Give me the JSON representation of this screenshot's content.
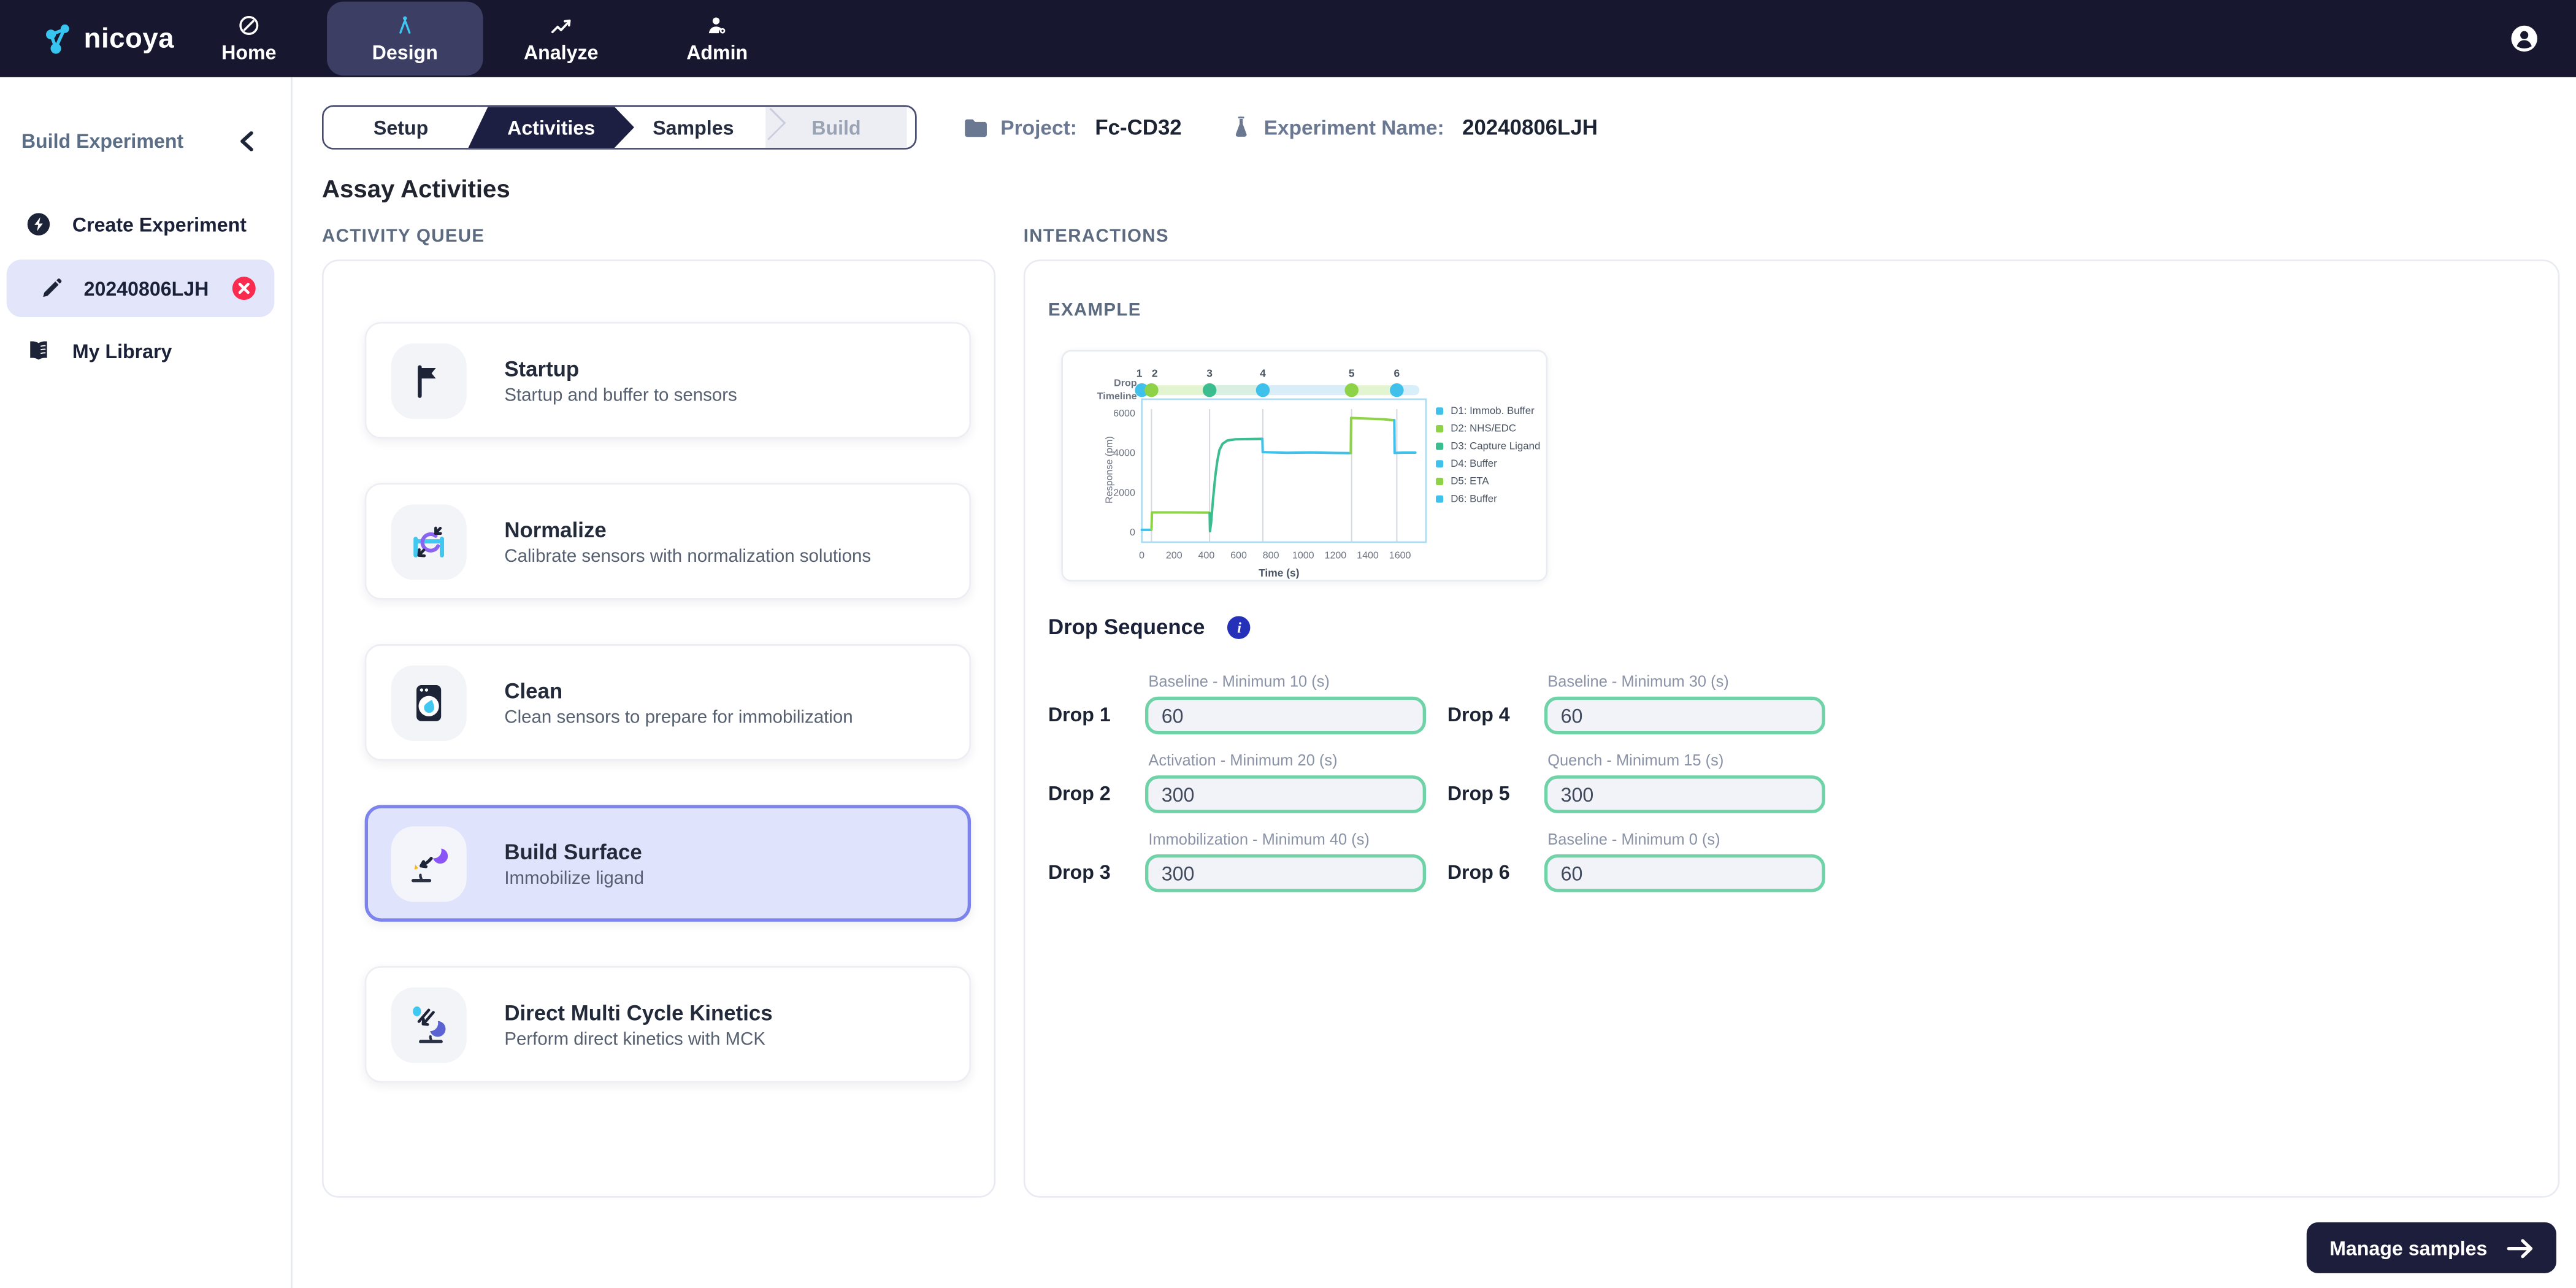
{
  "nav": {
    "brand": "nicoya",
    "items": [
      {
        "label": "Home",
        "icon": "home-icon",
        "active": false
      },
      {
        "label": "Design",
        "icon": "design-icon",
        "active": true
      },
      {
        "label": "Analyze",
        "icon": "analyze-icon",
        "active": false
      },
      {
        "label": "Admin",
        "icon": "admin-icon",
        "active": false
      }
    ]
  },
  "sidebar": {
    "title": "Build Experiment",
    "items": [
      {
        "label": "Create Experiment",
        "icon": "bolt-circle-icon",
        "selected": false,
        "closable": false
      },
      {
        "label": "20240806LJH",
        "icon": "pencil-icon",
        "selected": true,
        "closable": true
      },
      {
        "label": "My Library",
        "icon": "book-icon",
        "selected": false,
        "closable": false
      }
    ]
  },
  "stepper": {
    "steps": [
      {
        "label": "Setup",
        "state": "default"
      },
      {
        "label": "Activities",
        "state": "active"
      },
      {
        "label": "Samples",
        "state": "default"
      },
      {
        "label": "Build",
        "state": "disabled"
      }
    ]
  },
  "context": {
    "project_label": "Project:",
    "project_value": "Fc-CD32",
    "experiment_label": "Experiment Name:",
    "experiment_value": "20240806LJH"
  },
  "page": {
    "title": "Assay Activities",
    "queue_heading": "ACTIVITY QUEUE",
    "interactions_heading": "INTERACTIONS",
    "example_heading": "EXAMPLE"
  },
  "activities": [
    {
      "title": "Startup",
      "subtitle": "Startup and buffer to sensors",
      "icon": "flag-icon",
      "selected": false
    },
    {
      "title": "Normalize",
      "subtitle": "Calibrate sensors with normalization solutions",
      "icon": "normalize-icon",
      "selected": false
    },
    {
      "title": "Clean",
      "subtitle": "Clean sensors to prepare for immobilization",
      "icon": "clean-icon",
      "selected": false
    },
    {
      "title": "Build Surface",
      "subtitle": "Immobilize ligand",
      "icon": "build-surface-icon",
      "selected": true
    },
    {
      "title": "Direct Multi Cycle Kinetics",
      "subtitle": "Perform direct kinetics with MCK",
      "icon": "kinetics-icon",
      "selected": false
    }
  ],
  "drop_sequence": {
    "title": "Drop Sequence",
    "drops": [
      {
        "name": "Drop 1",
        "label": "Baseline - Minimum 10 (s)",
        "value": "60"
      },
      {
        "name": "Drop 2",
        "label": "Activation - Minimum 20 (s)",
        "value": "300"
      },
      {
        "name": "Drop 3",
        "label": "Immobilization - Minimum 40 (s)",
        "value": "300"
      },
      {
        "name": "Drop 4",
        "label": "Baseline - Minimum 30 (s)",
        "value": "60"
      },
      {
        "name": "Drop 5",
        "label": "Quench - Minimum 15 (s)",
        "value": "300"
      },
      {
        "name": "Drop 6",
        "label": "Baseline - Minimum 0 (s)",
        "value": "60"
      }
    ],
    "display_order": [
      0,
      3,
      1,
      4,
      2,
      5
    ]
  },
  "footer": {
    "manage_samples_label": "Manage samples"
  },
  "colors": {
    "navbar": "#17182f",
    "accent_cyan": "#3fc1ec",
    "accent_green": "#8ed347",
    "accent_teal": "#3cbd90",
    "selection_lavender": "#dfe3fb",
    "selection_border": "#7c83ec",
    "input_border_green": "#6fd3a7",
    "danger_red": "#fb2b50",
    "info_blue": "#2531b8",
    "dark_button": "#1c1e3c"
  },
  "chart_data": {
    "type": "line",
    "title": "Drop Timeline",
    "xlabel": "Time (s)",
    "ylabel": "Response (pm)",
    "xlim": [
      0,
      1700
    ],
    "ylim": [
      0,
      6000
    ],
    "xticks": [
      0,
      200,
      400,
      600,
      800,
      1000,
      1200,
      1400,
      1600
    ],
    "yticks": [
      0,
      2000,
      4000,
      6000
    ],
    "grid": "vertical-at-drop-boundaries",
    "legend_position": "right",
    "timeline_label_line1": "Drop",
    "timeline_label_line2": "Timeline",
    "timeline_markers": [
      {
        "n": "1",
        "t": 0,
        "color": "#3fc1ec"
      },
      {
        "n": "2",
        "t": 60,
        "color": "#8ed347"
      },
      {
        "n": "3",
        "t": 420,
        "color": "#3cbd90"
      },
      {
        "n": "4",
        "t": 750,
        "color": "#3fc1ec"
      },
      {
        "n": "5",
        "t": 1300,
        "color": "#8ed347"
      },
      {
        "n": "6",
        "t": 1580,
        "color": "#3fc1ec"
      }
    ],
    "timeline_segments": [
      {
        "from": 0,
        "to": 60,
        "color": "#d8eef8"
      },
      {
        "from": 60,
        "to": 420,
        "color": "#e3f4d0"
      },
      {
        "from": 420,
        "to": 750,
        "color": "#d8efe2"
      },
      {
        "from": 750,
        "to": 1300,
        "color": "#d9edf8"
      },
      {
        "from": 1300,
        "to": 1580,
        "color": "#e3f4d0"
      },
      {
        "from": 1580,
        "to": 1700,
        "color": "#d8eef8"
      }
    ],
    "series": [
      {
        "name": "D1: Immob. Buffer",
        "color": "#3fc1ec",
        "points": [
          [
            0,
            120
          ],
          [
            58,
            120
          ]
        ]
      },
      {
        "name": "D2: NHS/EDC",
        "color": "#8ed347",
        "points": [
          [
            60,
            150
          ],
          [
            63,
            1000
          ],
          [
            240,
            1000
          ],
          [
            418,
            990
          ]
        ]
      },
      {
        "name": "D3: Capture Ligand",
        "color": "#3cbd90",
        "points": [
          [
            420,
            950
          ],
          [
            422,
            60
          ],
          [
            430,
            500
          ],
          [
            442,
            1700
          ],
          [
            455,
            2800
          ],
          [
            468,
            3600
          ],
          [
            482,
            4150
          ],
          [
            500,
            4450
          ],
          [
            530,
            4620
          ],
          [
            580,
            4680
          ],
          [
            745,
            4700
          ]
        ]
      },
      {
        "name": "D4: Buffer",
        "color": "#3fc1ec",
        "points": [
          [
            747,
            4700
          ],
          [
            749,
            4030
          ],
          [
            900,
            4000
          ],
          [
            1050,
            4015
          ],
          [
            1200,
            3990
          ],
          [
            1293,
            3985
          ]
        ]
      },
      {
        "name": "D5: ETA",
        "color": "#8ed347",
        "points": [
          [
            1295,
            3985
          ],
          [
            1297,
            5750
          ],
          [
            1400,
            5720
          ],
          [
            1500,
            5690
          ],
          [
            1563,
            5640
          ]
        ]
      },
      {
        "name": "D6: Buffer",
        "color": "#3fc1ec",
        "points": [
          [
            1565,
            5640
          ],
          [
            1567,
            3990
          ],
          [
            1620,
            4005
          ],
          [
            1695,
            4005
          ]
        ]
      }
    ]
  }
}
